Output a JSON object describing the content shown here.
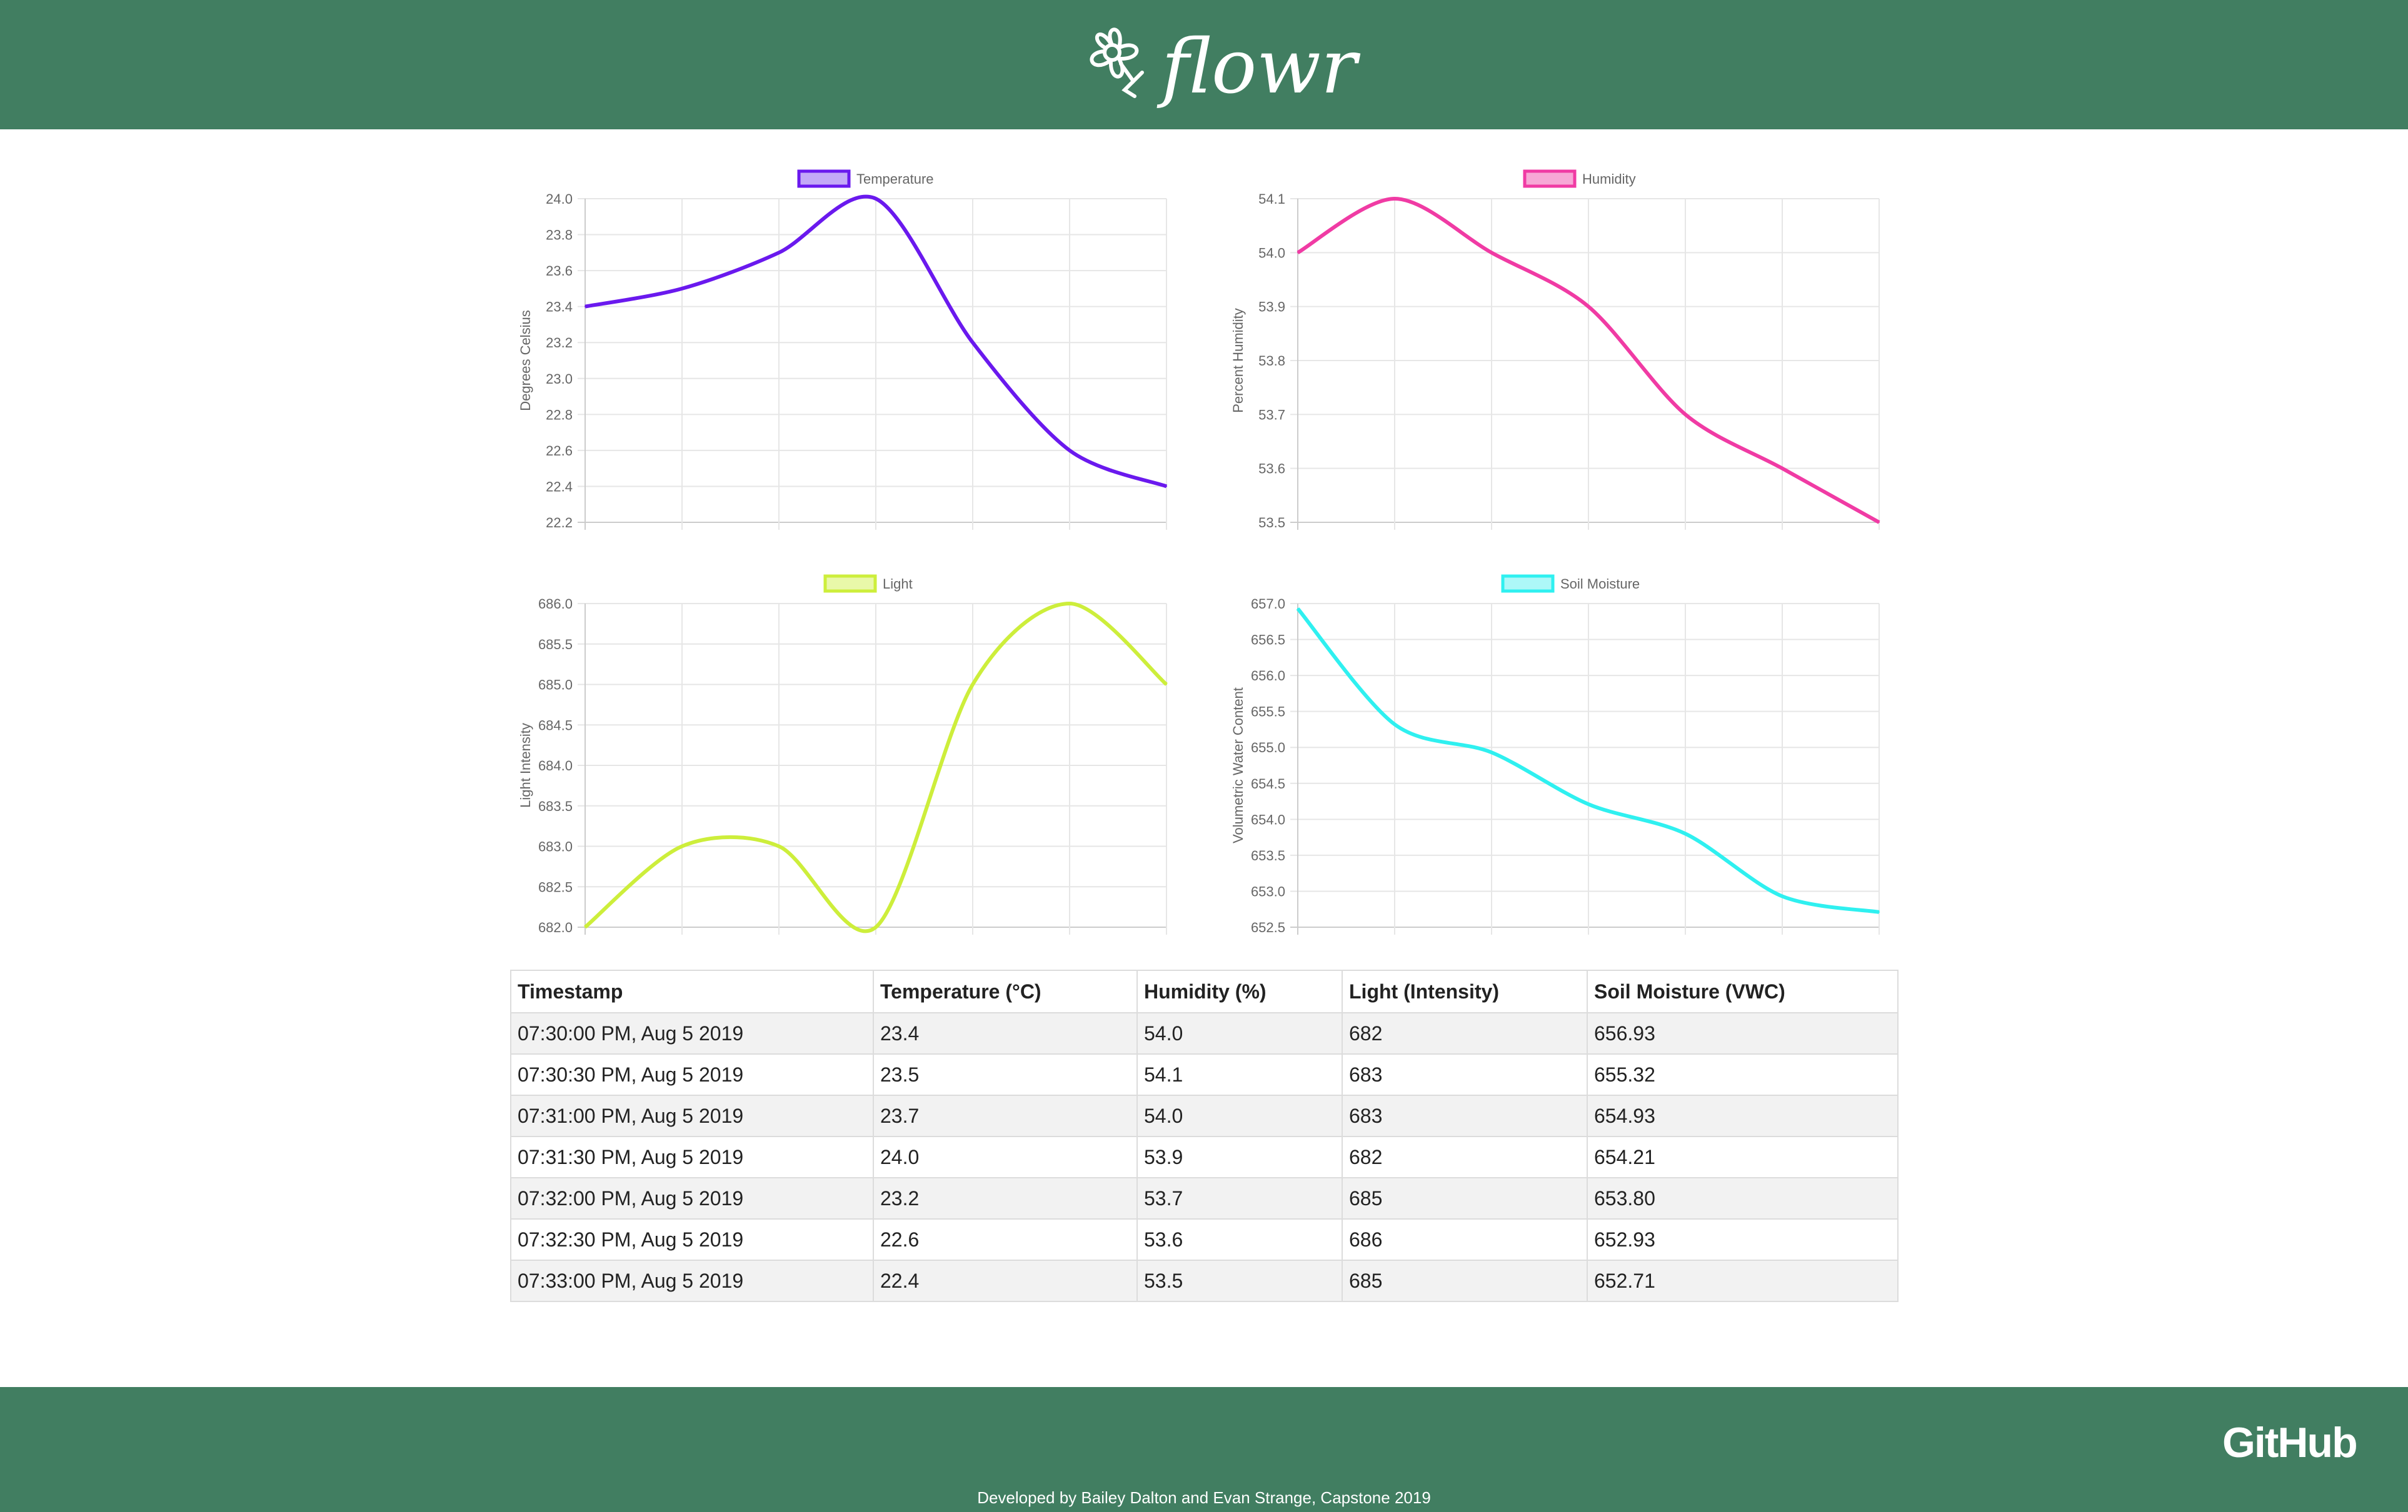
{
  "header": {
    "logo_text": "flowr"
  },
  "footer": {
    "github_label": "GitHub",
    "credits": "Developed by Bailey Dalton and Evan Strange, Capstone 2019"
  },
  "charts": [
    {
      "id": "temperature",
      "legend": "Temperature",
      "color": "#6a19ee",
      "legend_fill": "#c3a9f7",
      "ylabel": "Degrees Celsius",
      "ylim": [
        22.2,
        24.0
      ],
      "ystep": 0.2,
      "decimals": 1,
      "values": [
        23.4,
        23.5,
        23.7,
        24.0,
        23.2,
        22.6,
        22.4
      ]
    },
    {
      "id": "humidity",
      "legend": "Humidity",
      "color": "#f03ba4",
      "legend_fill": "#f7a8d6",
      "ylabel": "Percent Humidity",
      "ylim": [
        53.5,
        54.1
      ],
      "ystep": 0.1,
      "decimals": 1,
      "values": [
        54.0,
        54.1,
        54.0,
        53.9,
        53.7,
        53.6,
        53.5
      ]
    },
    {
      "id": "light",
      "legend": "Light",
      "color": "#cdee3b",
      "legend_fill": "#e9f8a9",
      "ylabel": "Light Intensity",
      "ylim": [
        682.0,
        686.0
      ],
      "ystep": 0.5,
      "decimals": 1,
      "values": [
        682,
        683,
        683,
        682,
        685,
        686,
        685
      ]
    },
    {
      "id": "soil",
      "legend": "Soil Moisture",
      "color": "#2ff0f0",
      "legend_fill": "#adf8f8",
      "ylabel": "Volumetric Water Content",
      "ylim": [
        652.5,
        657.0
      ],
      "ystep": 0.5,
      "decimals": 1,
      "values": [
        656.93,
        655.32,
        654.93,
        654.21,
        653.8,
        652.93,
        652.71
      ]
    }
  ],
  "chart_data": [
    {
      "type": "line",
      "legend": [
        "Temperature"
      ],
      "series": [
        {
          "name": "Temperature",
          "values": [
            23.4,
            23.5,
            23.7,
            24.0,
            23.2,
            22.6,
            22.4
          ]
        }
      ],
      "ylabel": "Degrees Celsius",
      "ylim": [
        22.2,
        24.0
      ],
      "grid": true,
      "legend_position": "top"
    },
    {
      "type": "line",
      "legend": [
        "Humidity"
      ],
      "series": [
        {
          "name": "Humidity",
          "values": [
            54.0,
            54.1,
            54.0,
            53.9,
            53.7,
            53.6,
            53.5
          ]
        }
      ],
      "ylabel": "Percent Humidity",
      "ylim": [
        53.5,
        54.1
      ],
      "grid": true,
      "legend_position": "top"
    },
    {
      "type": "line",
      "legend": [
        "Light"
      ],
      "series": [
        {
          "name": "Light",
          "values": [
            682,
            683,
            683,
            682,
            685,
            686,
            685
          ]
        }
      ],
      "ylabel": "Light Intensity",
      "ylim": [
        682.0,
        686.0
      ],
      "grid": true,
      "legend_position": "top"
    },
    {
      "type": "line",
      "legend": [
        "Soil Moisture"
      ],
      "series": [
        {
          "name": "Soil Moisture",
          "values": [
            656.93,
            655.32,
            654.93,
            654.21,
            653.8,
            652.93,
            652.71
          ]
        }
      ],
      "ylabel": "Volumetric Water Content",
      "ylim": [
        652.5,
        657.0
      ],
      "grid": true,
      "legend_position": "top"
    }
  ],
  "table": {
    "headers": [
      "Timestamp",
      "Temperature (°C)",
      "Humidity (%)",
      "Light (Intensity)",
      "Soil Moisture (VWC)"
    ],
    "rows": [
      [
        "07:30:00 PM, Aug 5 2019",
        "23.4",
        "54.0",
        "682",
        "656.93"
      ],
      [
        "07:30:30 PM, Aug 5 2019",
        "23.5",
        "54.1",
        "683",
        "655.32"
      ],
      [
        "07:31:00 PM, Aug 5 2019",
        "23.7",
        "54.0",
        "683",
        "654.93"
      ],
      [
        "07:31:30 PM, Aug 5 2019",
        "24.0",
        "53.9",
        "682",
        "654.21"
      ],
      [
        "07:32:00 PM, Aug 5 2019",
        "23.2",
        "53.7",
        "685",
        "653.80"
      ],
      [
        "07:32:30 PM, Aug 5 2019",
        "22.6",
        "53.6",
        "686",
        "652.93"
      ],
      [
        "07:33:00 PM, Aug 5 2019",
        "22.4",
        "53.5",
        "685",
        "652.71"
      ]
    ]
  }
}
